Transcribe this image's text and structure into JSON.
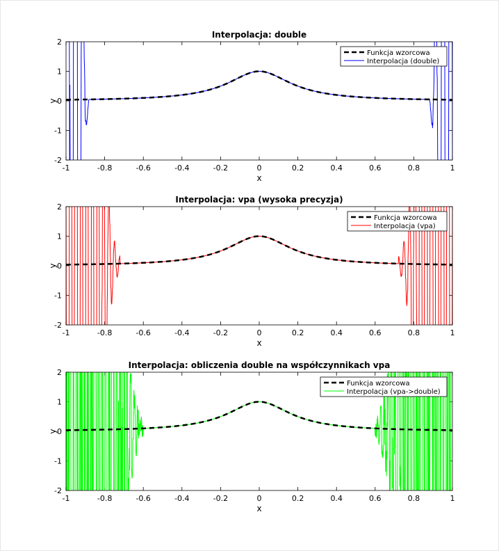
{
  "chart_data": [
    {
      "type": "line",
      "title": "Interpolacja: double",
      "xlabel": "x",
      "ylabel": "y",
      "xlim": [
        -1,
        1
      ],
      "ylim": [
        -2,
        2
      ],
      "xticks": [
        "-1",
        "-0.8",
        "-0.6",
        "-0.4",
        "-0.2",
        "0",
        "0.2",
        "0.4",
        "0.6",
        "0.8",
        "1"
      ],
      "yticks": [
        "-2",
        "-1",
        "0",
        "1",
        "2"
      ],
      "legend_position": "top-right",
      "reference_function": "1/(1+25x^2)",
      "series": [
        {
          "name": "Funkcja wzorcowa",
          "color": "#000000",
          "style": "dashed"
        },
        {
          "name": "Interpolacja (double)",
          "color": "#0000ff",
          "style": "solid",
          "oscillation_start_abs_x": 0.88
        }
      ]
    },
    {
      "type": "line",
      "title": "Interpolacja: vpa (wysoka precyzja)",
      "xlabel": "x",
      "ylabel": "y",
      "xlim": [
        -1,
        1
      ],
      "ylim": [
        -2,
        2
      ],
      "xticks": [
        "-1",
        "-0.8",
        "-0.6",
        "-0.4",
        "-0.2",
        "0",
        "0.2",
        "0.4",
        "0.6",
        "0.8",
        "1"
      ],
      "yticks": [
        "-2",
        "-1",
        "0",
        "1",
        "2"
      ],
      "legend_position": "top-right",
      "reference_function": "1/(1+25x^2)",
      "series": [
        {
          "name": "Funkcja wzorcowa",
          "color": "#000000",
          "style": "dashed"
        },
        {
          "name": "Interpolacja (vpa)",
          "color": "#ff0000",
          "style": "solid",
          "oscillation_start_abs_x": 0.72
        }
      ]
    },
    {
      "type": "line",
      "title": "Interpolacja: obliczenia double na współczynnikach vpa",
      "xlabel": "x",
      "ylabel": "y",
      "xlim": [
        -1,
        1
      ],
      "ylim": [
        -2,
        2
      ],
      "xticks": [
        "-1",
        "-0.8",
        "-0.6",
        "-0.4",
        "-0.2",
        "0",
        "0.2",
        "0.4",
        "0.6",
        "0.8",
        "1"
      ],
      "yticks": [
        "-2",
        "-1",
        "0",
        "1",
        "2"
      ],
      "legend_position": "top-right",
      "reference_function": "1/(1+25x^2)",
      "series": [
        {
          "name": "Funkcja wzorcowa",
          "color": "#000000",
          "style": "dashed"
        },
        {
          "name": "Interpolacja (vpa->double)",
          "color": "#00ff00",
          "style": "solid",
          "oscillation_start_abs_x": 0.6
        }
      ]
    }
  ]
}
